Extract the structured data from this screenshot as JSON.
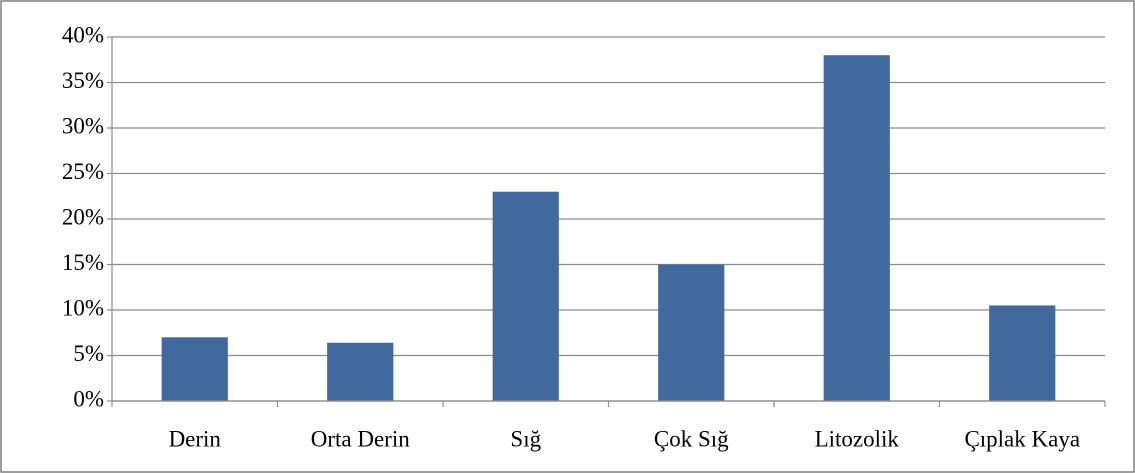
{
  "chart_data": {
    "type": "bar",
    "categories": [
      "Derin",
      "Orta Derin",
      "Sığ",
      "Çok Sığ",
      "Litozolik",
      "Çıplak Kaya"
    ],
    "values": [
      7,
      6.4,
      23,
      15,
      38,
      10.5
    ],
    "color": "#41699d",
    "ylim": [
      0,
      40
    ],
    "yticks": [
      {
        "value": 0,
        "label": "0%"
      },
      {
        "value": 5,
        "label": "5%"
      },
      {
        "value": 10,
        "label": "10%"
      },
      {
        "value": 15,
        "label": "15%"
      },
      {
        "value": 20,
        "label": "20%"
      },
      {
        "value": 25,
        "label": "25%"
      },
      {
        "value": 30,
        "label": "30%"
      },
      {
        "value": 35,
        "label": "35%"
      },
      {
        "value": 40,
        "label": "40%"
      }
    ],
    "grid": true
  }
}
